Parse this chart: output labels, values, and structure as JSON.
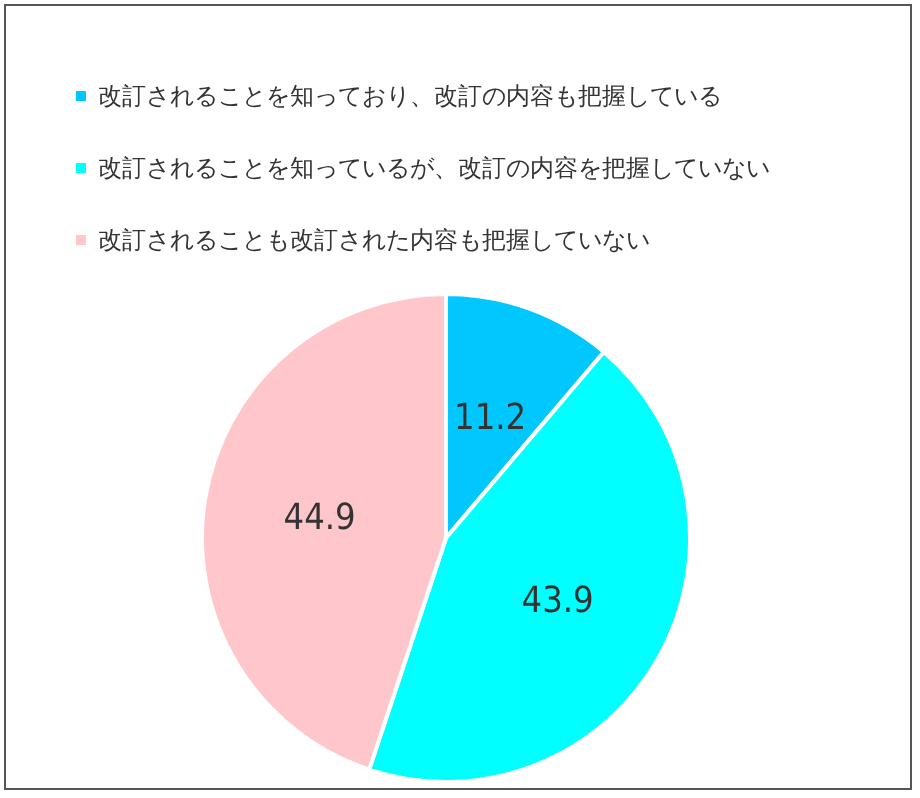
{
  "chart_data": {
    "type": "pie",
    "categories": [
      "改訂されることを知っており、改訂の内容も把握している",
      "改訂されることを知っているが、改訂の内容を把握していない",
      "改訂されることも改訂された内容も把握していない"
    ],
    "values": [
      11.2,
      43.9,
      44.9
    ],
    "colors": [
      "#00c8ff",
      "#00ffff",
      "#ffc7cb"
    ],
    "legend": "top left",
    "data_labels": true
  }
}
